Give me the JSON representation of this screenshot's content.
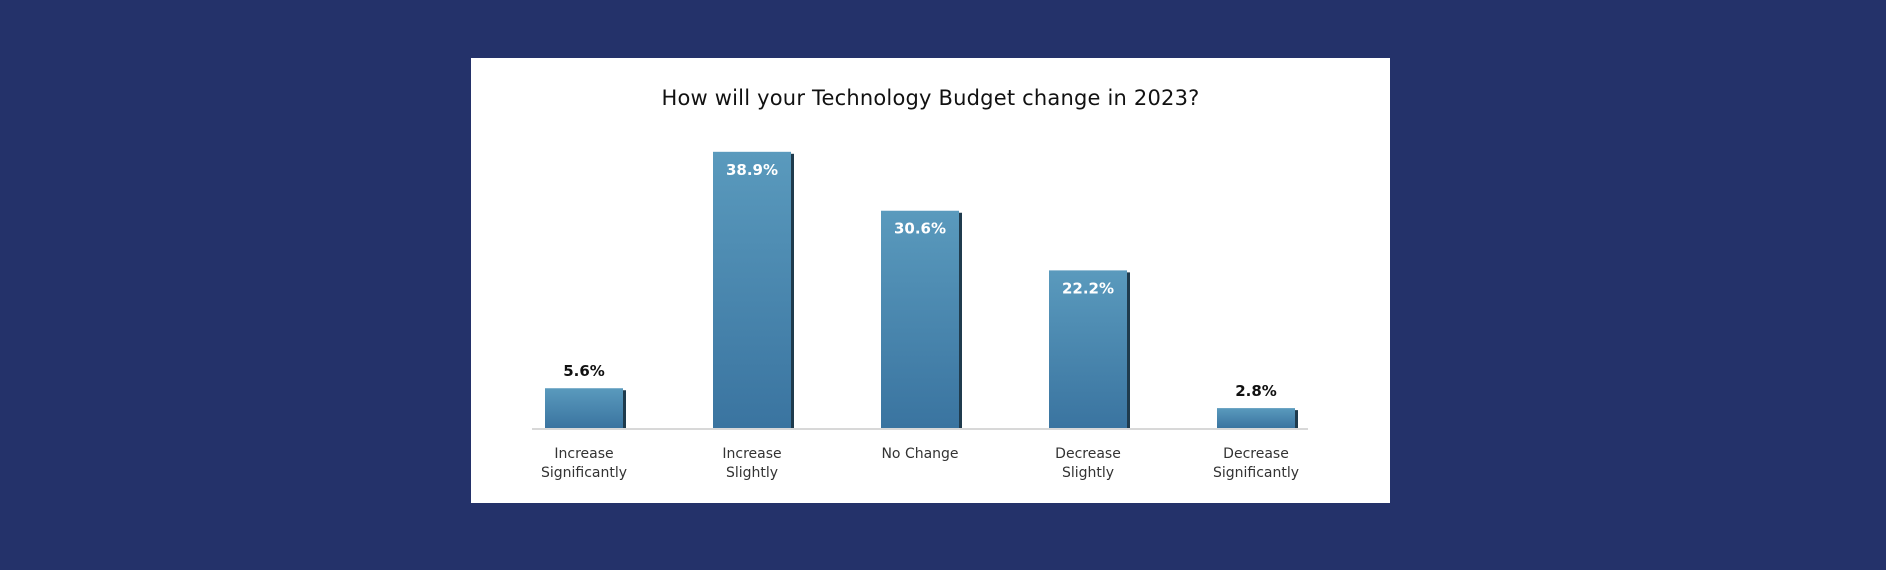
{
  "chart_data": {
    "type": "bar",
    "title": "How will your Technology Budget change in 2023?",
    "categories": [
      [
        "Increase",
        "Significantly"
      ],
      [
        "Increase",
        "Slightly"
      ],
      [
        "No Change"
      ],
      [
        "Decrease",
        "Slightly"
      ],
      [
        "Decrease",
        "Significantly"
      ]
    ],
    "values": [
      5.6,
      38.9,
      30.6,
      22.2,
      2.8
    ],
    "value_labels": [
      "5.6%",
      "38.9%",
      "30.6%",
      "22.2%",
      "2.8%"
    ],
    "xlabel": "",
    "ylabel": "",
    "ylim": [
      0,
      40
    ],
    "grid": false,
    "colors": {
      "bar_top": "#5a9abd",
      "bar_bottom": "#3a74a0",
      "bar_side": "#1f3b4d",
      "background": "#24326a",
      "axis": "#d8d8d8"
    }
  }
}
